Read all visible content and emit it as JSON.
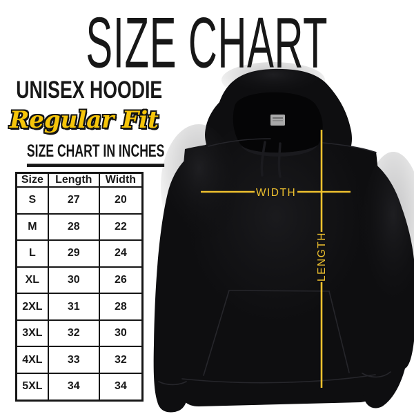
{
  "title": "SIZE CHART",
  "product": {
    "name": "UNISEX HOODIE",
    "fit": "Regular Fit"
  },
  "size_table": {
    "heading": "SIZE CHART IN INCHES",
    "columns": [
      "Size",
      "Length",
      "Width"
    ],
    "rows": [
      [
        "S",
        "27",
        "20"
      ],
      [
        "M",
        "28",
        "22"
      ],
      [
        "L",
        "29",
        "24"
      ],
      [
        "XL",
        "30",
        "26"
      ],
      [
        "2XL",
        "31",
        "28"
      ],
      [
        "3XL",
        "32",
        "30"
      ],
      [
        "4XL",
        "33",
        "32"
      ],
      [
        "5XL",
        "34",
        "34"
      ]
    ]
  },
  "diagram": {
    "width_label": "WIDTH",
    "length_label": "LENGTH"
  },
  "colors": {
    "measure_yellow": "#EFC12E",
    "script_yellow": "#F6C50A",
    "ink": "#141414",
    "hoodie_black": "#0E0E10",
    "background": "#FFFFFF"
  }
}
